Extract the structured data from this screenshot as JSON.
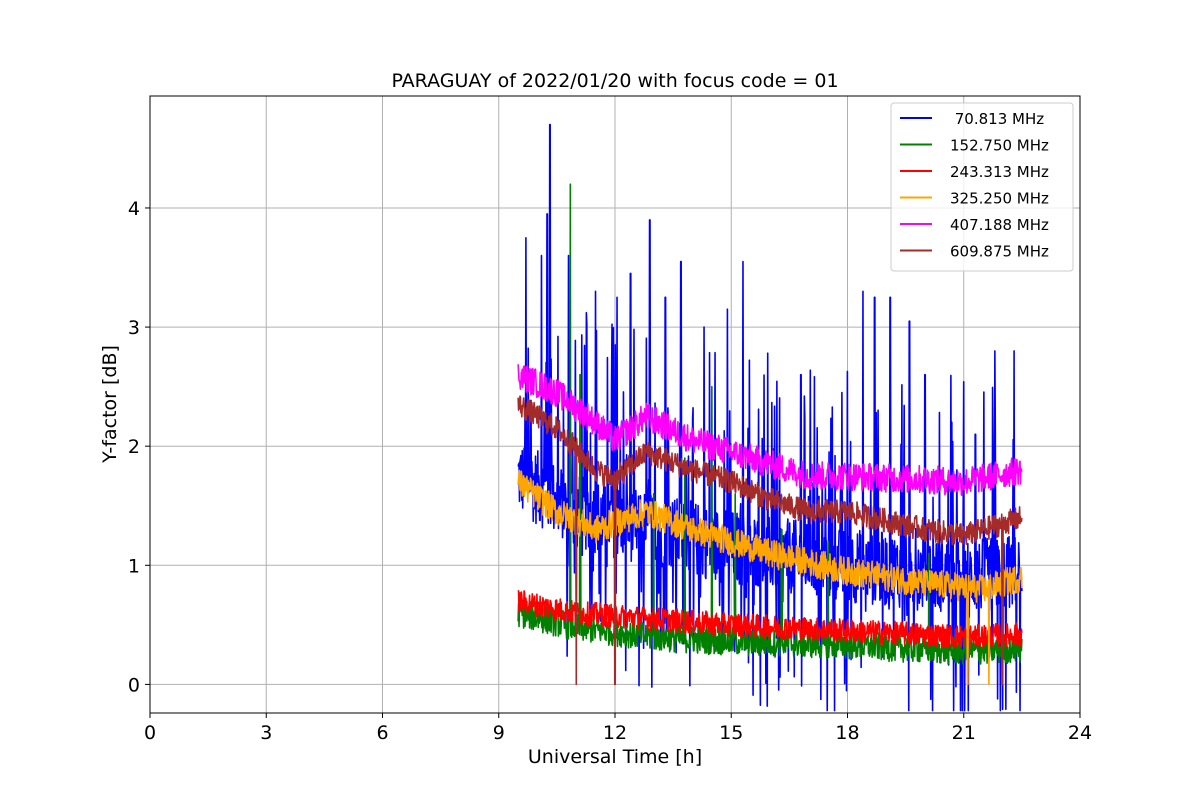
{
  "chart_data": {
    "type": "line",
    "title": "PARAGUAY of 2022/01/20 with focus code = 01",
    "xlabel": "Universal Time [h]",
    "ylabel": "Y-factor [dB]",
    "xlim": [
      0,
      24
    ],
    "ylim": [
      -0.24,
      4.94
    ],
    "xticks": [
      0,
      3,
      6,
      9,
      12,
      15,
      18,
      21,
      24
    ],
    "xtick_labels": [
      "0",
      "3",
      "6",
      "9",
      "12",
      "15",
      "18",
      "21",
      "24"
    ],
    "yticks": [
      0,
      1,
      2,
      3,
      4
    ],
    "ytick_labels": [
      "0",
      "1",
      "2",
      "3",
      "4"
    ],
    "grid": true,
    "legend_position": "top-right",
    "time_range": [
      9.5,
      22.5
    ],
    "series": [
      {
        "name": " 70.813 MHz",
        "color": "#0000ff",
        "baseline": [
          [
            9.5,
            1.75
          ],
          [
            11.0,
            1.45
          ],
          [
            13.0,
            1.3
          ],
          [
            15.0,
            1.15
          ],
          [
            18.0,
            1.0
          ],
          [
            21.0,
            0.9
          ],
          [
            22.5,
            0.95
          ]
        ],
        "noise": 0.9,
        "spikes": [
          [
            9.7,
            3.75
          ],
          [
            10.1,
            3.6
          ],
          [
            10.25,
            3.95
          ],
          [
            10.32,
            4.7
          ],
          [
            10.8,
            3.6
          ],
          [
            11.5,
            3.3
          ],
          [
            12.05,
            3.25
          ],
          [
            12.4,
            3.45
          ],
          [
            12.9,
            3.9
          ],
          [
            13.3,
            3.25
          ],
          [
            13.7,
            3.55
          ],
          [
            14.3,
            3.0
          ],
          [
            14.9,
            3.15
          ],
          [
            15.3,
            3.55
          ],
          [
            16.8,
            2.6
          ],
          [
            18.4,
            3.3
          ],
          [
            18.7,
            3.25
          ],
          [
            19.1,
            3.25
          ],
          [
            19.6,
            3.05
          ],
          [
            20.0,
            2.6
          ],
          [
            21.3,
            2.1
          ],
          [
            21.8,
            2.8
          ],
          [
            22.3,
            2.8
          ]
        ]
      },
      {
        "name": "152.750 MHz",
        "color": "#008000",
        "baseline": [
          [
            9.5,
            0.6
          ],
          [
            11.0,
            0.48
          ],
          [
            13.0,
            0.4
          ],
          [
            15.0,
            0.36
          ],
          [
            18.0,
            0.33
          ],
          [
            21.0,
            0.28
          ],
          [
            22.5,
            0.3
          ]
        ],
        "noise": 0.12,
        "spikes": [
          [
            10.85,
            4.2
          ],
          [
            11.1,
            2.6
          ],
          [
            13.0,
            1.6
          ],
          [
            13.8,
            1.9
          ],
          [
            14.5,
            2.5
          ],
          [
            15.1,
            1.6
          ],
          [
            16.3,
            1.3
          ],
          [
            17.5,
            1.2
          ],
          [
            20.1,
            1.1
          ],
          [
            22.0,
            0.95
          ]
        ]
      },
      {
        "name": "243.313 MHz",
        "color": "#ff0000",
        "baseline": [
          [
            9.5,
            0.7
          ],
          [
            11.0,
            0.6
          ],
          [
            13.0,
            0.55
          ],
          [
            15.0,
            0.5
          ],
          [
            18.0,
            0.45
          ],
          [
            21.0,
            0.4
          ],
          [
            22.5,
            0.42
          ]
        ],
        "noise": 0.1,
        "spikes": []
      },
      {
        "name": "325.250 MHz",
        "color": "#ffa500",
        "baseline": [
          [
            9.5,
            1.7
          ],
          [
            10.5,
            1.45
          ],
          [
            11.5,
            1.3
          ],
          [
            12.8,
            1.45
          ],
          [
            14.0,
            1.3
          ],
          [
            15.0,
            1.2
          ],
          [
            16.0,
            1.1
          ],
          [
            18.0,
            0.95
          ],
          [
            20.0,
            0.85
          ],
          [
            21.5,
            0.8
          ],
          [
            22.5,
            0.9
          ]
        ],
        "noise": 0.12,
        "spikes": []
      },
      {
        "name": "407.188 MHz",
        "color": "#ff00ff",
        "baseline": [
          [
            9.5,
            2.6
          ],
          [
            10.5,
            2.45
          ],
          [
            11.5,
            2.2
          ],
          [
            12.0,
            2.05
          ],
          [
            12.8,
            2.25
          ],
          [
            14.0,
            2.05
          ],
          [
            15.0,
            1.95
          ],
          [
            16.0,
            1.85
          ],
          [
            17.0,
            1.75
          ],
          [
            18.0,
            1.75
          ],
          [
            20.0,
            1.72
          ],
          [
            21.0,
            1.7
          ],
          [
            22.5,
            1.8
          ]
        ],
        "noise": 0.12,
        "spikes": []
      },
      {
        "name": "609.875 MHz",
        "color": "#a52a2a",
        "baseline": [
          [
            9.5,
            2.35
          ],
          [
            10.5,
            2.15
          ],
          [
            11.5,
            1.8
          ],
          [
            12.0,
            1.72
          ],
          [
            12.8,
            1.95
          ],
          [
            14.0,
            1.8
          ],
          [
            15.0,
            1.7
          ],
          [
            16.0,
            1.55
          ],
          [
            17.0,
            1.45
          ],
          [
            18.0,
            1.45
          ],
          [
            20.0,
            1.3
          ],
          [
            21.0,
            1.25
          ],
          [
            22.5,
            1.4
          ]
        ],
        "noise": 0.1,
        "spikes": []
      }
    ],
    "dropouts": [
      {
        "x": 11.0,
        "series": "609.875 MHz"
      },
      {
        "x": 12.0,
        "series": "609.875 MHz"
      },
      {
        "x": 21.1,
        "series": "325.250 MHz"
      },
      {
        "x": 21.65,
        "series": "325.250 MHz"
      },
      {
        "x": 22.0,
        "series": "609.875 MHz"
      }
    ]
  }
}
